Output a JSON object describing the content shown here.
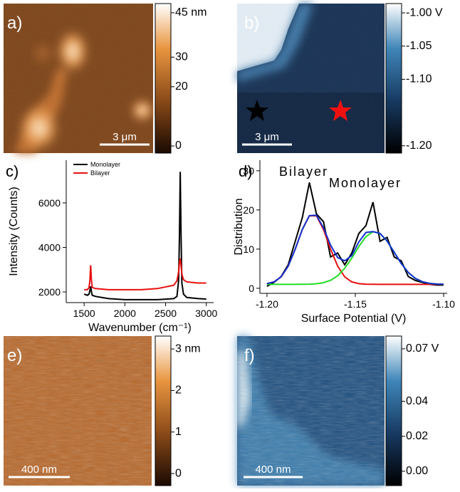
{
  "panels": [
    {
      "label": "a)",
      "scale_bar": "3 μm",
      "clim": [
        -2.4,
        48.1
      ],
      "cticks": [
        {
          "value": 45,
          "label": "45 nm"
        },
        30,
        20,
        0
      ]
    },
    {
      "label": "b)",
      "scale_bar": "3 μm",
      "clim": [
        -1.211,
        -0.986
      ],
      "cticks": [
        {
          "value": -1.0,
          "label": "-1.00 V"
        },
        {
          "value": -1.05,
          "label": "-1.05"
        },
        {
          "value": -1.1,
          "label": "-1.10"
        },
        {
          "value": -1.2,
          "label": "-1.20"
        }
      ]
    },
    {
      "label": "e)",
      "scale_bar": "400 nm",
      "clim": [
        -0.29,
        3.31
      ],
      "cticks": [
        {
          "value": 3,
          "label": "3 nm"
        },
        2,
        1,
        0
      ]
    },
    {
      "label": "f)",
      "scale_bar": "400 nm",
      "clim": [
        -0.0082,
        0.0773
      ],
      "cticks": [
        {
          "value": 0.07,
          "label": "0.07 V"
        },
        {
          "value": 0.04,
          "label": "0.04"
        },
        {
          "value": 0.02,
          "label": "0.02"
        },
        {
          "value": 0.0,
          "label": "0.00"
        }
      ]
    }
  ],
  "chart_data": [
    {
      "type": "line",
      "panel_label": "c)",
      "x_label": "Wavenumber (cm⁻¹)",
      "y_label": "Intensity (Counts)",
      "x": [
        1500,
        1540,
        1560,
        1570,
        1580,
        1590,
        1600,
        1640,
        1800,
        2000,
        2200,
        2400,
        2600,
        2640,
        2660,
        2670,
        2680,
        2690,
        2700,
        2720,
        2760,
        2900,
        3000
      ],
      "series": [
        {
          "name": "Monolayer",
          "color": "#000000",
          "values": [
            1900,
            1850,
            1900,
            2050,
            2250,
            2000,
            1850,
            1800,
            1700,
            1650,
            1650,
            1650,
            1700,
            1800,
            2500,
            4500,
            7400,
            4500,
            2400,
            1900,
            1750,
            1700,
            1680
          ]
        },
        {
          "name": "Bilayer",
          "color": "#e8100f",
          "values": [
            2100,
            2100,
            2200,
            2500,
            3200,
            2500,
            2200,
            2150,
            2100,
            2100,
            2100,
            2150,
            2300,
            2500,
            2900,
            3300,
            3500,
            3200,
            2800,
            2550,
            2450,
            2400,
            2400
          ]
        }
      ],
      "xlim": [
        1280,
        3090
      ],
      "ylim": [
        1520,
        7920
      ],
      "xticks": [
        1500,
        2000,
        2500,
        3000
      ],
      "yticks": [
        2000,
        4000,
        6000
      ]
    },
    {
      "type": "line",
      "panel_label": "d)",
      "x_label": "Surface Potential (V)",
      "y_label": "Distribution",
      "annotations": [
        "Bilayer",
        "Monolayer"
      ],
      "x": [
        -1.2,
        -1.196,
        -1.192,
        -1.188,
        -1.184,
        -1.18,
        -1.176,
        -1.172,
        -1.168,
        -1.164,
        -1.16,
        -1.156,
        -1.152,
        -1.148,
        -1.144,
        -1.14,
        -1.136,
        -1.132,
        -1.128,
        -1.124,
        -1.12,
        -1.116,
        -1.112,
        -1.108,
        -1.104,
        -1.1
      ],
      "series": [
        {
          "color": "#000000",
          "values": [
            0.5,
            1.5,
            3,
            6,
            12,
            18,
            27,
            19,
            17,
            8,
            9,
            6,
            9,
            14,
            16,
            22,
            12,
            13,
            8,
            7,
            3,
            2,
            1.5,
            1,
            0.8,
            0.8
          ]
        },
        {
          "color": "#e8100f",
          "values": [
            1.17,
            1.63,
            2.92,
            5.64,
            10.0,
            15.0,
            18.5,
            18.5,
            15.0,
            10.0,
            5.64,
            2.92,
            1.63,
            1.17,
            1.04,
            1.01,
            1.0,
            1.0,
            1.0,
            1.0,
            1.0,
            1.0,
            1.0,
            1.0,
            1.0,
            1.0
          ]
        },
        {
          "color": "#22dd22",
          "values": [
            1.0,
            1.0,
            1.0,
            1.0,
            1.0,
            1.01,
            1.05,
            1.15,
            1.42,
            2.02,
            3.19,
            5.1,
            7.7,
            10.65,
            13.2,
            14.45,
            14.0,
            12.05,
            9.2,
            6.3,
            4.03,
            2.51,
            1.66,
            1.25,
            1.09,
            1.03
          ]
        },
        {
          "color": "#1030d0",
          "values": [
            1.17,
            1.63,
            2.92,
            5.64,
            10.0,
            15.01,
            18.55,
            18.65,
            15.42,
            11.02,
            7.83,
            7.02,
            8.33,
            11.82,
            14.24,
            14.46,
            14.0,
            12.05,
            9.2,
            6.3,
            4.03,
            2.51,
            1.66,
            1.25,
            1.09,
            1.03
          ]
        }
      ],
      "xlim": [
        -1.204,
        -1.098
      ],
      "ylim": [
        -1.3,
        32.7
      ],
      "xticks": [
        {
          "value": -1.2,
          "label": "-1.20"
        },
        {
          "value": -1.15,
          "label": "-1.15"
        },
        {
          "value": -1.1,
          "label": "-1.10"
        }
      ],
      "yticks": [
        0,
        10,
        20,
        30
      ]
    }
  ]
}
